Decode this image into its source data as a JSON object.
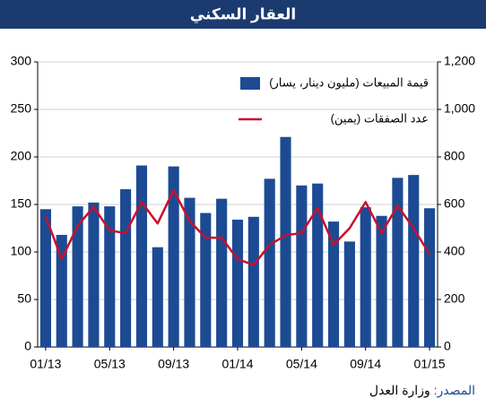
{
  "chart_data": {
    "type": "bar-line",
    "title": "العقار السكني",
    "categories": [
      "01/13",
      null,
      null,
      null,
      "05/13",
      null,
      null,
      null,
      "09/13",
      null,
      null,
      null,
      "01/14",
      null,
      null,
      null,
      "05/14",
      null,
      null,
      null,
      "09/14",
      null,
      null,
      null,
      "01/15"
    ],
    "series": [
      {
        "name": "قيمة المبيعات (مليون دينار، يسار)",
        "type": "bar",
        "color": "#1c4b93",
        "values": [
          145,
          118,
          148,
          152,
          148,
          166,
          191,
          105,
          190,
          157,
          141,
          156,
          134,
          137,
          177,
          221,
          170,
          172,
          132,
          111,
          147,
          138,
          178,
          181,
          146
        ]
      },
      {
        "name": "عدد الصفقات (يمين)",
        "type": "line",
        "axis": "y2",
        "color": "#c8102e",
        "values": [
          550,
          370,
          510,
          590,
          490,
          480,
          610,
          520,
          660,
          530,
          460,
          460,
          370,
          345,
          430,
          470,
          480,
          585,
          430,
          500,
          610,
          480,
          595,
          500,
          390
        ]
      }
    ],
    "ylim": [
      0,
      300
    ],
    "yticks": [
      0,
      50,
      100,
      150,
      200,
      250,
      300
    ],
    "y2lim": [
      0,
      1200
    ],
    "y2ticks": [
      0,
      200,
      400,
      600,
      800,
      {
        "value": 1000,
        "label": "1,000"
      },
      {
        "value": 1200,
        "label": "1,200"
      }
    ],
    "grid": true,
    "source_label": "المصدر:",
    "source_text": "وزارة العدل"
  }
}
